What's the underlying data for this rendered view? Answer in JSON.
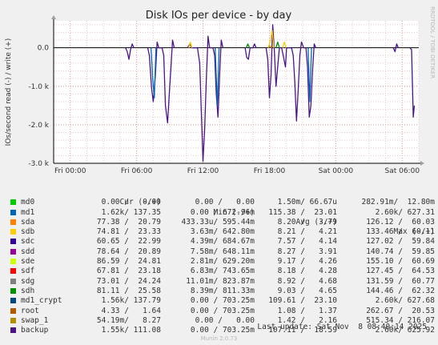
{
  "chart_data": {
    "type": "line",
    "title": "Disk IOs per device - by day",
    "ylabel": "IOs/second read (-) / write (+)",
    "xlabel": "",
    "watermark": "RRDTOOL / TOBI OETIKER",
    "ylim": [
      -3000,
      700
    ],
    "yticks": [
      {
        "v": 0,
        "label": "0.0"
      },
      {
        "v": -1000,
        "label": "-1.0 k"
      },
      {
        "v": -2000,
        "label": "-2.0 k"
      },
      {
        "v": -3000,
        "label": "-3.0 k"
      }
    ],
    "xlim": [
      -1.5,
      31.5
    ],
    "xticks": [
      {
        "v": 0,
        "label": "Fri 00:00"
      },
      {
        "v": 6,
        "label": "Fri 06:00"
      },
      {
        "v": 12,
        "label": "Fri 12:00"
      },
      {
        "v": 18,
        "label": "Fri 18:00"
      },
      {
        "v": 24,
        "label": "Sat 00:00"
      },
      {
        "v": 30,
        "label": "Sat 06:00"
      }
    ],
    "grid": true,
    "series": [
      {
        "name": "backup",
        "color": "#4a1486",
        "values": [
          [
            5.0,
            0
          ],
          [
            5.15,
            -100
          ],
          [
            5.3,
            -300
          ],
          [
            5.45,
            -50
          ],
          [
            5.6,
            100
          ],
          [
            5.75,
            0
          ],
          [
            7.0,
            0
          ],
          [
            7.15,
            -200
          ],
          [
            7.35,
            -1050
          ],
          [
            7.5,
            -1400
          ],
          [
            7.7,
            -700
          ],
          [
            7.85,
            150
          ],
          [
            8.0,
            0
          ],
          [
            8.3,
            0
          ],
          [
            8.45,
            -200
          ],
          [
            8.6,
            -1500
          ],
          [
            8.8,
            -1950
          ],
          [
            8.95,
            -1200
          ],
          [
            9.1,
            -500
          ],
          [
            9.25,
            200
          ],
          [
            9.4,
            0
          ],
          [
            10.6,
            0
          ],
          [
            10.8,
            100
          ],
          [
            11.0,
            0
          ],
          [
            11.5,
            0
          ],
          [
            11.7,
            -400
          ],
          [
            11.85,
            -1700
          ],
          [
            12.0,
            -2950
          ],
          [
            12.15,
            -2100
          ],
          [
            12.3,
            -800
          ],
          [
            12.45,
            300
          ],
          [
            12.6,
            0
          ],
          [
            12.9,
            0
          ],
          [
            13.05,
            -200
          ],
          [
            13.2,
            -1200
          ],
          [
            13.35,
            -1800
          ],
          [
            13.5,
            -700
          ],
          [
            13.65,
            200
          ],
          [
            13.8,
            0
          ],
          [
            15.8,
            0
          ],
          [
            15.95,
            -250
          ],
          [
            16.1,
            -300
          ],
          [
            16.25,
            0
          ],
          [
            16.5,
            0
          ],
          [
            16.65,
            100
          ],
          [
            16.8,
            0
          ],
          [
            17.7,
            0
          ],
          [
            17.85,
            -300
          ],
          [
            18.0,
            -1300
          ],
          [
            18.15,
            -700
          ],
          [
            18.3,
            600
          ],
          [
            18.45,
            -100
          ],
          [
            18.6,
            -1000
          ],
          [
            18.75,
            -500
          ],
          [
            18.9,
            0
          ],
          [
            19.1,
            0
          ],
          [
            19.25,
            -200
          ],
          [
            19.45,
            -500
          ],
          [
            19.55,
            0
          ],
          [
            20.0,
            0
          ],
          [
            20.15,
            -200
          ],
          [
            20.3,
            -900
          ],
          [
            20.45,
            -1900
          ],
          [
            20.6,
            -1100
          ],
          [
            20.75,
            -200
          ],
          [
            20.9,
            150
          ],
          [
            21.1,
            0
          ],
          [
            21.3,
            0
          ],
          [
            21.45,
            -500
          ],
          [
            21.6,
            -1800
          ],
          [
            21.75,
            -1500
          ],
          [
            21.9,
            -600
          ],
          [
            22.05,
            100
          ],
          [
            22.2,
            0
          ],
          [
            29.2,
            0
          ],
          [
            29.35,
            -100
          ],
          [
            29.5,
            100
          ],
          [
            29.65,
            0
          ],
          [
            30.7,
            0
          ],
          [
            30.85,
            -50
          ],
          [
            31.0,
            -1800
          ],
          [
            31.1,
            -1500
          ]
        ]
      },
      {
        "name": "sda",
        "color": "#0066b3",
        "values": [
          [
            7.3,
            0
          ],
          [
            7.45,
            -800
          ],
          [
            7.6,
            -1300
          ],
          [
            7.75,
            0
          ],
          [
            13.1,
            0
          ],
          [
            13.3,
            -1500
          ],
          [
            13.45,
            0
          ],
          [
            21.5,
            0
          ],
          [
            21.65,
            -1400
          ],
          [
            21.8,
            0
          ]
        ]
      },
      {
        "name": "sdg",
        "color": "#f8cc00",
        "values": [
          [
            10.7,
            0
          ],
          [
            10.85,
            150
          ],
          [
            11.0,
            0
          ],
          [
            17.9,
            0
          ],
          [
            18.1,
            200
          ],
          [
            18.25,
            450
          ],
          [
            18.4,
            0
          ],
          [
            19.2,
            0
          ],
          [
            19.35,
            150
          ],
          [
            19.5,
            0
          ]
        ]
      },
      {
        "name": "sdh",
        "color": "#008f00",
        "values": [
          [
            15.9,
            0
          ],
          [
            16.05,
            100
          ],
          [
            16.2,
            0
          ],
          [
            18.6,
            0
          ],
          [
            18.75,
            150
          ],
          [
            18.9,
            0
          ]
        ]
      },
      {
        "name": "swap_1",
        "color": "#cc9900",
        "values": [
          [
            17.9,
            0
          ],
          [
            18.05,
            50
          ],
          [
            18.2,
            0
          ]
        ]
      }
    ]
  },
  "legend": {
    "headers": [
      "Cur (-/+)",
      "Min (-/+)",
      "Avg (-/+)",
      "Max (-/+)"
    ],
    "rows": [
      {
        "name": "md0",
        "color": "#00cc00",
        "cur": "0.00 /   0.00",
        "min": "0.00 /   0.00",
        "avg": "1.50m/ 66.67u",
        "max": "282.91m/  12.80m"
      },
      {
        "name": "md1",
        "color": "#0066b3",
        "cur": "1.62k/ 137.35",
        "min": "0.00 / 672.96m",
        "avg": "115.38 /  23.01",
        "max": "2.60k/ 627.31"
      },
      {
        "name": "sda",
        "color": "#ff8000",
        "cur": "77.38 /  20.79",
        "min": "433.33u/ 595.44m",
        "avg": "8.20 /   3.79",
        "max": "126.12 /  60.03"
      },
      {
        "name": "sdb",
        "color": "#ffcc00",
        "cur": "74.81 /  23.33",
        "min": "3.63m/ 642.80m",
        "avg": "8.21 /   4.21",
        "max": "133.46 /  60.11"
      },
      {
        "name": "sdc",
        "color": "#330099",
        "cur": "60.65 /  22.99",
        "min": "4.39m/ 684.67m",
        "avg": "7.57 /   4.14",
        "max": "127.02 /  59.84"
      },
      {
        "name": "sdd",
        "color": "#990099",
        "cur": "78.64 /  20.89",
        "min": "7.58m/ 648.11m",
        "avg": "8.27 /   3.91",
        "max": "140.74 /  59.85"
      },
      {
        "name": "sde",
        "color": "#ccff00",
        "cur": "86.59 /  24.81",
        "min": "2.81m/ 629.20m",
        "avg": "9.17 /   4.26",
        "max": "155.10 /  60.69"
      },
      {
        "name": "sdf",
        "color": "#ff0000",
        "cur": "67.81 /  23.18",
        "min": "6.83m/ 743.65m",
        "avg": "8.18 /   4.28",
        "max": "127.45 /  64.53"
      },
      {
        "name": "sdg",
        "color": "#808080",
        "cur": "73.01 /  24.24",
        "min": "11.01m/ 823.87m",
        "avg": "8.92 /   4.68",
        "max": "131.59 /  60.77"
      },
      {
        "name": "sdh",
        "color": "#008f00",
        "cur": "81.11 /  25.58",
        "min": "8.39m/ 811.33m",
        "avg": "9.03 /   4.65",
        "max": "144.46 /  62.32"
      },
      {
        "name": "md1_crypt",
        "color": "#00487d",
        "cur": "1.56k/ 137.79",
        "min": "0.00 / 703.25m",
        "avg": "109.61 /  23.10",
        "max": "2.60k/ 627.68"
      },
      {
        "name": "root",
        "color": "#b35a00",
        "cur": "4.33 /   1.64",
        "min": "0.00 / 703.25m",
        "avg": "1.08 /   1.37",
        "max": "262.67 /  20.53"
      },
      {
        "name": "swap_1",
        "color": "#b38f00",
        "cur": "54.19m/   8.27",
        "min": "0.00 /   0.00",
        "avg": "1.42 /   2.16",
        "max": "515.34 / 216.07"
      },
      {
        "name": "backup",
        "color": "#4a1486",
        "cur": "1.55k/ 111.08",
        "min": "0.00 / 703.25m",
        "avg": "107.11 /  18.59",
        "max": "2.60k/ 625.92"
      }
    ]
  },
  "footer": {
    "last_update": "Last update: Sat Nov  8 08:40:14 2025",
    "munin": "Munin 2.0.73"
  }
}
